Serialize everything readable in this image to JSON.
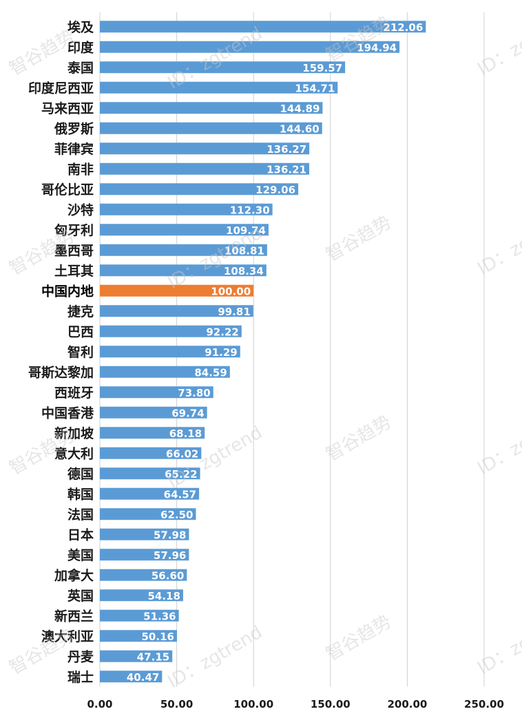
{
  "chart_data": {
    "type": "bar",
    "orientation": "horizontal",
    "categories": [
      "埃及",
      "印度",
      "泰国",
      "印度尼西亚",
      "马来西亚",
      "俄罗斯",
      "菲律宾",
      "南非",
      "哥伦比亚",
      "沙特",
      "匈牙利",
      "墨西哥",
      "土耳其",
      "中国内地",
      "捷克",
      "巴西",
      "智利",
      "哥斯达黎加",
      "西班牙",
      "中国香港",
      "新加坡",
      "意大利",
      "德国",
      "韩国",
      "法国",
      "日本",
      "美国",
      "加拿大",
      "英国",
      "新西兰",
      "澳大利亚",
      "丹麦",
      "瑞士"
    ],
    "values": [
      212.06,
      194.94,
      159.57,
      154.71,
      144.89,
      144.6,
      136.27,
      136.21,
      129.06,
      112.3,
      109.74,
      108.81,
      108.34,
      100.0,
      99.81,
      92.22,
      91.29,
      84.59,
      73.8,
      69.74,
      68.18,
      66.02,
      65.22,
      64.57,
      62.5,
      57.98,
      57.96,
      56.6,
      54.18,
      51.36,
      50.16,
      47.15,
      40.47
    ],
    "value_labels": [
      "212.06",
      "194.94",
      "159.57",
      "154.71",
      "144.89",
      "144.60",
      "136.27",
      "136.21",
      "129.06",
      "112.30",
      "109.74",
      "108.81",
      "108.34",
      "100.00",
      "99.81",
      "92.22",
      "91.29",
      "84.59",
      "73.80",
      "69.74",
      "68.18",
      "66.02",
      "65.22",
      "64.57",
      "62.50",
      "57.98",
      "57.96",
      "56.60",
      "54.18",
      "51.36",
      "50.16",
      "47.15",
      "40.47"
    ],
    "highlight": "中国内地",
    "xlim": [
      0,
      250
    ],
    "xticks": [
      0,
      50,
      100,
      150,
      200,
      250
    ],
    "xtick_labels": [
      "0.00",
      "50.00",
      "100.00",
      "150.00",
      "200.00",
      "250.00"
    ],
    "grid": "vertical",
    "legend": "none",
    "colors": {
      "bar": "#5b9bd5",
      "highlight": "#ed7d31",
      "grid": "#d0d0d0"
    },
    "watermark": [
      "智谷趋势",
      "ID：zgtrend"
    ]
  }
}
